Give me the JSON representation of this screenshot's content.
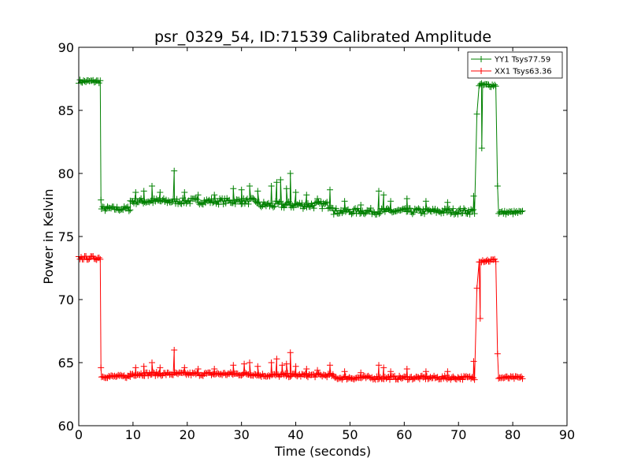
{
  "chart_data": {
    "type": "line",
    "title": "psr_0329_54, ID:71539 Calibrated Amplitude",
    "xlabel": "Time (seconds)",
    "ylabel": "Power in Kelvin",
    "xlim": [
      0,
      90
    ],
    "ylim": [
      60,
      90
    ],
    "xticks": [
      "0",
      "10",
      "20",
      "30",
      "40",
      "50",
      "60",
      "70",
      "80",
      "90"
    ],
    "yticks": [
      "60",
      "65",
      "70",
      "75",
      "80",
      "85",
      "90"
    ],
    "grid": false,
    "legend_position": "top-right",
    "series": [
      {
        "name": "YY1 Tsys77.59",
        "color": "#008000",
        "segments": [
          {
            "x_start": 0.0,
            "x_end": 4.0,
            "baseline": 87.3,
            "jitter": 0.15
          },
          {
            "x_start": 4.2,
            "x_end": 9.5,
            "baseline": 77.2,
            "jitter": 0.2
          },
          {
            "x_start": 9.5,
            "x_end": 33.0,
            "baseline": 77.8,
            "jitter": 0.25
          },
          {
            "x_start": 33.0,
            "x_end": 47.0,
            "baseline": 77.5,
            "jitter": 0.3
          },
          {
            "x_start": 47.0,
            "x_end": 73.0,
            "baseline": 77.0,
            "jitter": 0.25
          },
          {
            "x_start": 73.8,
            "x_end": 77.0,
            "baseline": 87.0,
            "jitter": 0.15
          },
          {
            "x_start": 77.4,
            "x_end": 82.0,
            "baseline": 76.9,
            "jitter": 0.15
          }
        ],
        "transitions": [
          {
            "x": 4.1,
            "from": 87.3,
            "to": 77.9
          },
          {
            "x": 73.4,
            "from": 76.9,
            "to": 84.7
          },
          {
            "x": 77.2,
            "from": 87.0,
            "to": 79.0
          }
        ],
        "spikes": [
          {
            "x": 10.5,
            "y": 78.5
          },
          {
            "x": 12.0,
            "y": 78.6
          },
          {
            "x": 13.5,
            "y": 79.0
          },
          {
            "x": 15.0,
            "y": 78.5
          },
          {
            "x": 17.6,
            "y": 80.2
          },
          {
            "x": 19.5,
            "y": 78.5
          },
          {
            "x": 22.0,
            "y": 78.3
          },
          {
            "x": 25.0,
            "y": 78.3
          },
          {
            "x": 28.5,
            "y": 78.8
          },
          {
            "x": 30.0,
            "y": 78.7
          },
          {
            "x": 31.5,
            "y": 79.0
          },
          {
            "x": 33.0,
            "y": 78.6
          },
          {
            "x": 35.5,
            "y": 79.0
          },
          {
            "x": 36.5,
            "y": 79.3
          },
          {
            "x": 37.2,
            "y": 79.5
          },
          {
            "x": 38.3,
            "y": 78.8
          },
          {
            "x": 39.0,
            "y": 80.0
          },
          {
            "x": 40.0,
            "y": 78.5
          },
          {
            "x": 42.0,
            "y": 78.3
          },
          {
            "x": 44.0,
            "y": 78.0
          },
          {
            "x": 46.3,
            "y": 78.7
          },
          {
            "x": 49.0,
            "y": 77.8
          },
          {
            "x": 52.0,
            "y": 77.5
          },
          {
            "x": 55.3,
            "y": 78.6
          },
          {
            "x": 56.2,
            "y": 78.3
          },
          {
            "x": 57.5,
            "y": 77.8
          },
          {
            "x": 60.5,
            "y": 78.0
          },
          {
            "x": 64.0,
            "y": 77.8
          },
          {
            "x": 68.0,
            "y": 77.7
          },
          {
            "x": 72.8,
            "y": 78.2
          }
        ],
        "dips": [
          {
            "x": 74.3,
            "y": 82.0
          }
        ]
      },
      {
        "name": "XX1 Tsys63.36",
        "color": "#ff0000",
        "segments": [
          {
            "x_start": 0.0,
            "x_end": 4.0,
            "baseline": 73.3,
            "jitter": 0.15
          },
          {
            "x_start": 4.2,
            "x_end": 9.5,
            "baseline": 63.9,
            "jitter": 0.12
          },
          {
            "x_start": 9.5,
            "x_end": 33.0,
            "baseline": 64.1,
            "jitter": 0.15
          },
          {
            "x_start": 33.0,
            "x_end": 47.0,
            "baseline": 64.0,
            "jitter": 0.15
          },
          {
            "x_start": 47.0,
            "x_end": 73.0,
            "baseline": 63.8,
            "jitter": 0.15
          },
          {
            "x_start": 73.8,
            "x_end": 77.0,
            "baseline": 73.1,
            "jitter": 0.15
          },
          {
            "x_start": 77.4,
            "x_end": 82.0,
            "baseline": 63.8,
            "jitter": 0.12
          }
        ],
        "transitions": [
          {
            "x": 4.1,
            "from": 73.3,
            "to": 64.6
          },
          {
            "x": 73.4,
            "from": 63.8,
            "to": 70.9
          },
          {
            "x": 77.2,
            "from": 73.1,
            "to": 65.7
          }
        ],
        "spikes": [
          {
            "x": 10.5,
            "y": 64.6
          },
          {
            "x": 12.0,
            "y": 64.7
          },
          {
            "x": 13.5,
            "y": 65.0
          },
          {
            "x": 15.0,
            "y": 64.6
          },
          {
            "x": 17.6,
            "y": 66.0
          },
          {
            "x": 19.5,
            "y": 64.6
          },
          {
            "x": 22.0,
            "y": 64.5
          },
          {
            "x": 25.0,
            "y": 64.5
          },
          {
            "x": 28.5,
            "y": 64.8
          },
          {
            "x": 30.5,
            "y": 64.9
          },
          {
            "x": 31.5,
            "y": 65.0
          },
          {
            "x": 33.0,
            "y": 64.7
          },
          {
            "x": 35.5,
            "y": 65.0
          },
          {
            "x": 36.5,
            "y": 65.3
          },
          {
            "x": 37.5,
            "y": 64.8
          },
          {
            "x": 38.3,
            "y": 64.9
          },
          {
            "x": 39.0,
            "y": 65.8
          },
          {
            "x": 40.0,
            "y": 64.7
          },
          {
            "x": 42.0,
            "y": 64.5
          },
          {
            "x": 44.0,
            "y": 64.4
          },
          {
            "x": 46.3,
            "y": 64.8
          },
          {
            "x": 49.0,
            "y": 64.3
          },
          {
            "x": 52.0,
            "y": 64.2
          },
          {
            "x": 55.3,
            "y": 64.8
          },
          {
            "x": 56.2,
            "y": 64.6
          },
          {
            "x": 57.5,
            "y": 64.3
          },
          {
            "x": 60.5,
            "y": 64.5
          },
          {
            "x": 64.0,
            "y": 64.3
          },
          {
            "x": 68.0,
            "y": 64.3
          },
          {
            "x": 72.8,
            "y": 65.1
          }
        ],
        "dips": [
          {
            "x": 74.0,
            "y": 68.5
          }
        ]
      }
    ]
  }
}
